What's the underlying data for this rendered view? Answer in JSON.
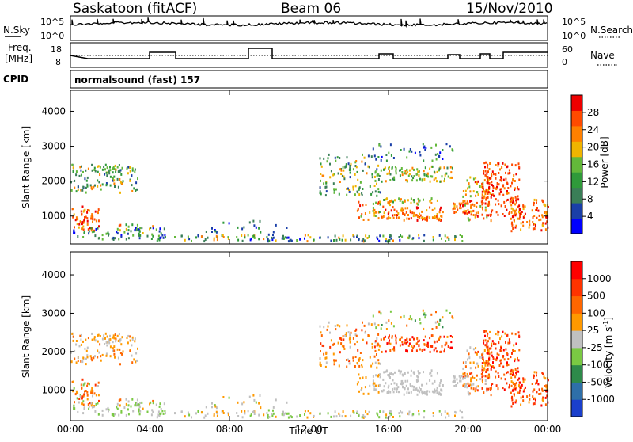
{
  "header": {
    "station": "Saskatoon (fitACF)",
    "beam": "Beam 06",
    "date": "15/Nov/2010"
  },
  "noise_panel": {
    "left_label": "N.Sky",
    "right_label": "N.Search",
    "left_ticks": [
      "10^5",
      "10^0"
    ],
    "right_ticks": [
      "10^5",
      "10^0"
    ]
  },
  "freq_panel": {
    "left_label_1": "Freq.",
    "left_label_2": "[MHz]",
    "right_label": "Nave",
    "left_ticks": [
      "18",
      "8"
    ],
    "right_ticks": [
      "60",
      "0"
    ]
  },
  "cpid_panel": {
    "label": "CPID",
    "text": "normalsound (fast) 157"
  },
  "colors": {
    "power_scale": [
      "#0000ff",
      "#1a3fa8",
      "#3a7e57",
      "#2f9a3a",
      "#63b83a",
      "#f0b400",
      "#ff8000",
      "#ff4a00",
      "#ee0000"
    ],
    "velocity_scale": [
      "#1a3fcc",
      "#2e6fa8",
      "#2e8a4a",
      "#7ac943",
      "#c0c0c0",
      "#ff9900",
      "#ff6600",
      "#ff3300",
      "#ff0000"
    ]
  },
  "chart_data": [
    {
      "type": "heatmap",
      "name": "Power",
      "ylabel": "Slant Range [km]",
      "xlabel": "",
      "x_ticks": [
        "00:00",
        "04:00",
        "08:00",
        "12:00",
        "16:00",
        "20:00",
        "00:00"
      ],
      "y_ticks": [
        "1000",
        "2000",
        "3000",
        "4000"
      ],
      "ylim": [
        200,
        4600
      ],
      "colorbar_label": "Power [dB]",
      "colorbar_ticks": [
        "28",
        "24",
        "20",
        "16",
        "12",
        "8",
        "4"
      ],
      "colorbar_range": [
        0,
        32
      ]
    },
    {
      "type": "heatmap",
      "name": "Velocity",
      "ylabel": "Slant Range [km]",
      "xlabel": "Time UT",
      "x_ticks": [
        "00:00",
        "04:00",
        "08:00",
        "12:00",
        "16:00",
        "20:00",
        "00:00"
      ],
      "y_ticks": [
        "1000",
        "2000",
        "3000",
        "4000"
      ],
      "ylim": [
        200,
        4600
      ],
      "colorbar_label": "Velocity [m s",
      "colorbar_label_sup": "-1",
      "colorbar_label_end": "]",
      "colorbar_ticks": [
        "1000",
        "500",
        "100",
        "25",
        "-25",
        "-100",
        "-500",
        "-1000"
      ]
    }
  ]
}
